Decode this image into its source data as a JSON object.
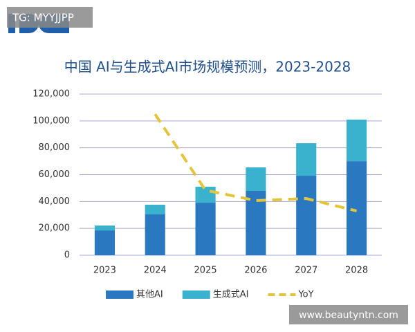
{
  "chart_data": {
    "type": "bar",
    "stacked": true,
    "title": "中国 AI与生成式AI市场规模预测，2023-2028",
    "categories": [
      "2023",
      "2024",
      "2025",
      "2026",
      "2027",
      "2028"
    ],
    "series": [
      {
        "name": "其他AI",
        "color": "#2a78c0",
        "values": [
          18500,
          30400,
          39100,
          47900,
          59200,
          70000
        ]
      },
      {
        "name": "生成式AI",
        "color": "#3ab2cd",
        "values": [
          3600,
          7200,
          11900,
          17500,
          24200,
          31000
        ]
      },
      {
        "name": "YoY",
        "type": "line",
        "dashed": true,
        "color": "#e3c53c",
        "values": [
          null,
          105000,
          48400,
          40700,
          42200,
          33000
        ]
      }
    ],
    "ylim": [
      0,
      120000
    ],
    "yticks": [
      0,
      {
        "value": 20000,
        "label": "20,000"
      },
      {
        "value": 40000,
        "label": "40,000"
      },
      {
        "value": 60000,
        "label": "60,000"
      },
      {
        "value": 80000,
        "label": "80,000"
      },
      {
        "value": 100000,
        "label": "100,000"
      },
      {
        "value": 120000,
        "label": "120,000"
      }
    ],
    "grid": true,
    "legend": "bottom"
  },
  "watermarks": [
    "TG: MYYJJPP",
    "www.beautyntn.com"
  ]
}
